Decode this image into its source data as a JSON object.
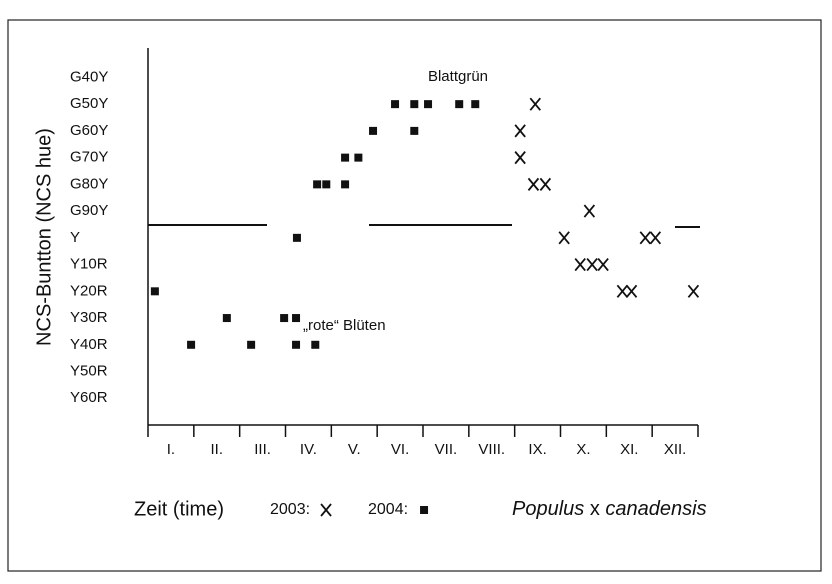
{
  "chart_data": {
    "type": "scatter",
    "y_label": "NCS-Buntton (NCS hue)",
    "x_label": "Zeit (time)",
    "annotations": [
      "Blattgrün",
      "„rote“ Blüten"
    ],
    "species_label": [
      "Populus",
      "x",
      "canadensis"
    ],
    "x_categories": [
      "I.",
      "II.",
      "III.",
      "IV.",
      "V.",
      "VI.",
      "VII.",
      "VIII.",
      "IX.",
      "X.",
      "XI.",
      "XII."
    ],
    "xlim": [
      0,
      12
    ],
    "xticks": [
      0,
      1,
      2,
      3,
      4,
      5,
      6,
      7,
      8,
      9,
      10,
      11,
      12
    ],
    "ylim": [
      -1,
      13.1
    ],
    "yticks": [
      {
        "value": 12,
        "label": "G40Y"
      },
      {
        "value": 11,
        "label": "G50Y"
      },
      {
        "value": 10,
        "label": "G60Y"
      },
      {
        "value": 9,
        "label": "G70Y"
      },
      {
        "value": 8,
        "label": "G80Y"
      },
      {
        "value": 7,
        "label": "G90Y"
      },
      {
        "value": 6,
        "label": "Y"
      },
      {
        "value": 5,
        "label": "Y10R"
      },
      {
        "value": 4,
        "label": "Y20R"
      },
      {
        "value": 3,
        "label": "Y30R"
      },
      {
        "value": 2,
        "label": "Y40R"
      },
      {
        "value": 1,
        "label": "Y50R"
      },
      {
        "value": 0,
        "label": "Y60R"
      }
    ],
    "series": [
      {
        "name": "2003:",
        "marker": "x",
        "color": "#111111",
        "x": [
          8.45,
          8.12,
          8.12,
          8.41,
          8.67,
          9.63,
          9.08,
          9.43,
          9.69,
          9.93,
          10.35,
          10.55,
          10.85,
          11.07,
          11.9
        ],
        "y": [
          11,
          10,
          9,
          8,
          8,
          7,
          6,
          5,
          5,
          5,
          4,
          4,
          6,
          6,
          4
        ]
      },
      {
        "name": "2004:",
        "marker": "square",
        "color": "#111111",
        "x": [
          0.15,
          0.94,
          1.72,
          2.25,
          2.97,
          3.23,
          3.23,
          3.65,
          3.25,
          3.69,
          3.89,
          4.3,
          4.3,
          4.59,
          4.91,
          5.39,
          5.81,
          6.11,
          5.81,
          6.79,
          7.14
        ],
        "y": [
          4,
          2,
          3,
          2,
          3,
          3,
          2,
          2,
          6,
          8,
          8,
          8,
          9,
          9,
          10,
          11,
          11,
          11,
          10,
          11,
          11
        ]
      }
    ]
  }
}
